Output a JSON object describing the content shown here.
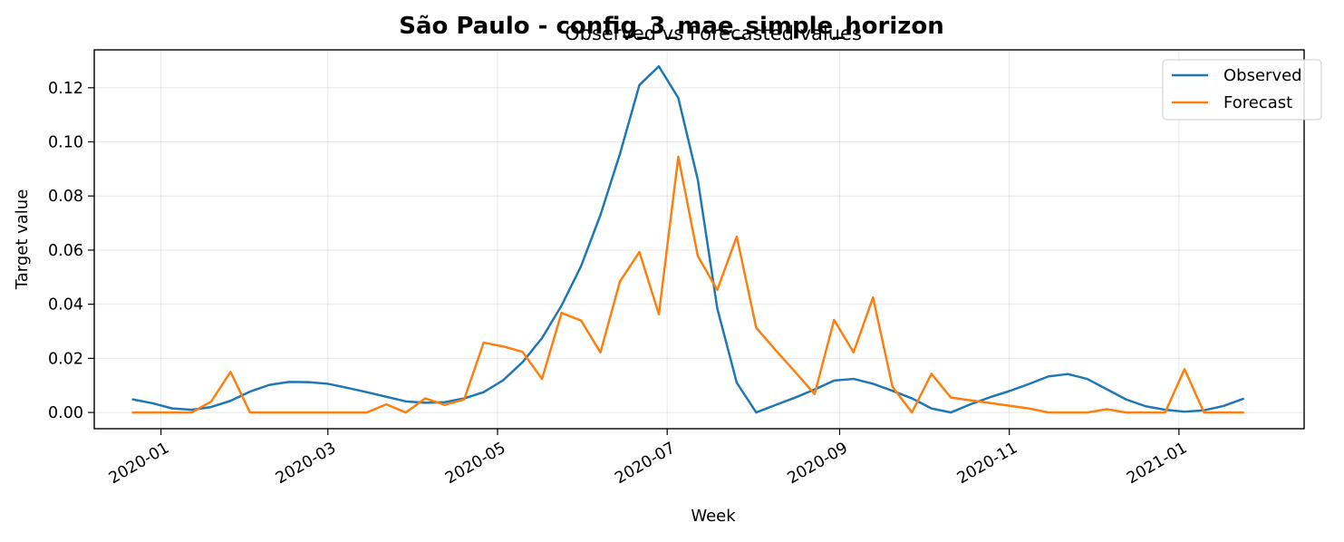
{
  "chart_data": {
    "type": "line",
    "title": "São Paulo - config_3_mae_simple_horizon",
    "subtitle": "Observed vs Forecasted values",
    "xlabel": "Week",
    "ylabel": "Target value",
    "xlim": [
      "2019-12-08",
      "2021-02-15"
    ],
    "ylim": [
      -0.006,
      0.134
    ],
    "x_ticks": [
      "2020-01-01",
      "2020-03-01",
      "2020-05-01",
      "2020-07-01",
      "2020-09-01",
      "2020-11-01",
      "2021-01-01"
    ],
    "x_tick_labels": [
      "2020-01",
      "2020-03",
      "2020-05",
      "2020-07",
      "2020-09",
      "2020-11",
      "2021-01"
    ],
    "y_ticks": [
      0.0,
      0.02,
      0.04,
      0.06,
      0.08,
      0.1,
      0.12
    ],
    "y_tick_labels": [
      "0.00",
      "0.02",
      "0.04",
      "0.06",
      "0.08",
      "0.10",
      "0.12"
    ],
    "grid": true,
    "legend_position": "top-right",
    "x": [
      "2019-12-22",
      "2019-12-29",
      "2020-01-05",
      "2020-01-12",
      "2020-01-19",
      "2020-01-26",
      "2020-02-02",
      "2020-02-09",
      "2020-02-16",
      "2020-02-23",
      "2020-03-01",
      "2020-03-08",
      "2020-03-15",
      "2020-03-22",
      "2020-03-29",
      "2020-04-05",
      "2020-04-12",
      "2020-04-19",
      "2020-04-26",
      "2020-05-03",
      "2020-05-10",
      "2020-05-17",
      "2020-05-24",
      "2020-05-31",
      "2020-06-07",
      "2020-06-14",
      "2020-06-21",
      "2020-06-28",
      "2020-07-05",
      "2020-07-12",
      "2020-07-19",
      "2020-07-26",
      "2020-08-02",
      "2020-08-09",
      "2020-08-16",
      "2020-08-23",
      "2020-08-30",
      "2020-09-06",
      "2020-09-13",
      "2020-09-20",
      "2020-09-27",
      "2020-10-04",
      "2020-10-11",
      "2020-10-18",
      "2020-10-25",
      "2020-11-01",
      "2020-11-08",
      "2020-11-15",
      "2020-11-22",
      "2020-11-29",
      "2020-12-06",
      "2020-12-13",
      "2020-12-20",
      "2020-12-27",
      "2021-01-03",
      "2021-01-10",
      "2021-01-17",
      "2021-01-24"
    ],
    "series": [
      {
        "name": "Observed",
        "color": "#1f77b4",
        "values": [
          0.0048,
          0.0034,
          0.0015,
          0.001,
          0.002,
          0.0043,
          0.0077,
          0.0102,
          0.0113,
          0.0112,
          0.0106,
          0.0091,
          0.0075,
          0.0058,
          0.0041,
          0.0036,
          0.0038,
          0.0052,
          0.0075,
          0.0119,
          0.0186,
          0.0275,
          0.0395,
          0.054,
          0.073,
          0.0955,
          0.121,
          0.1279,
          0.1162,
          0.086,
          0.0385,
          0.011,
          0.0,
          0.0028,
          0.0055,
          0.0085,
          0.0118,
          0.0124,
          0.0106,
          0.008,
          0.0052,
          0.0015,
          0.0,
          0.003,
          0.0056,
          0.0079,
          0.0105,
          0.0133,
          0.0142,
          0.0124,
          0.0086,
          0.0048,
          0.0023,
          0.001,
          0.0003,
          0.0008,
          0.0024,
          0.005
        ]
      },
      {
        "name": "Forecast",
        "color": "#ff7f0e",
        "values": [
          0.0,
          0.0,
          0.0,
          0.0,
          0.004,
          0.015,
          0.0,
          0.0,
          0.0,
          0.0,
          0.0,
          0.0,
          0.0,
          0.003,
          0.0,
          0.0052,
          0.0028,
          0.0048,
          0.0258,
          0.0244,
          0.0224,
          0.0124,
          0.0368,
          0.034,
          0.0222,
          0.0484,
          0.0593,
          0.0363,
          0.0945,
          0.0578,
          0.0453,
          0.065,
          0.0313,
          0.023,
          0.015,
          0.0068,
          0.0342,
          0.0222,
          0.0425,
          0.0095,
          0.0,
          0.0143,
          0.0055,
          0.0045,
          0.0035,
          0.0025,
          0.0015,
          0.0,
          0.0,
          0.0,
          0.0012,
          0.0,
          0.0,
          0.0,
          0.016,
          0.0,
          0.0,
          0.0
        ]
      }
    ]
  }
}
